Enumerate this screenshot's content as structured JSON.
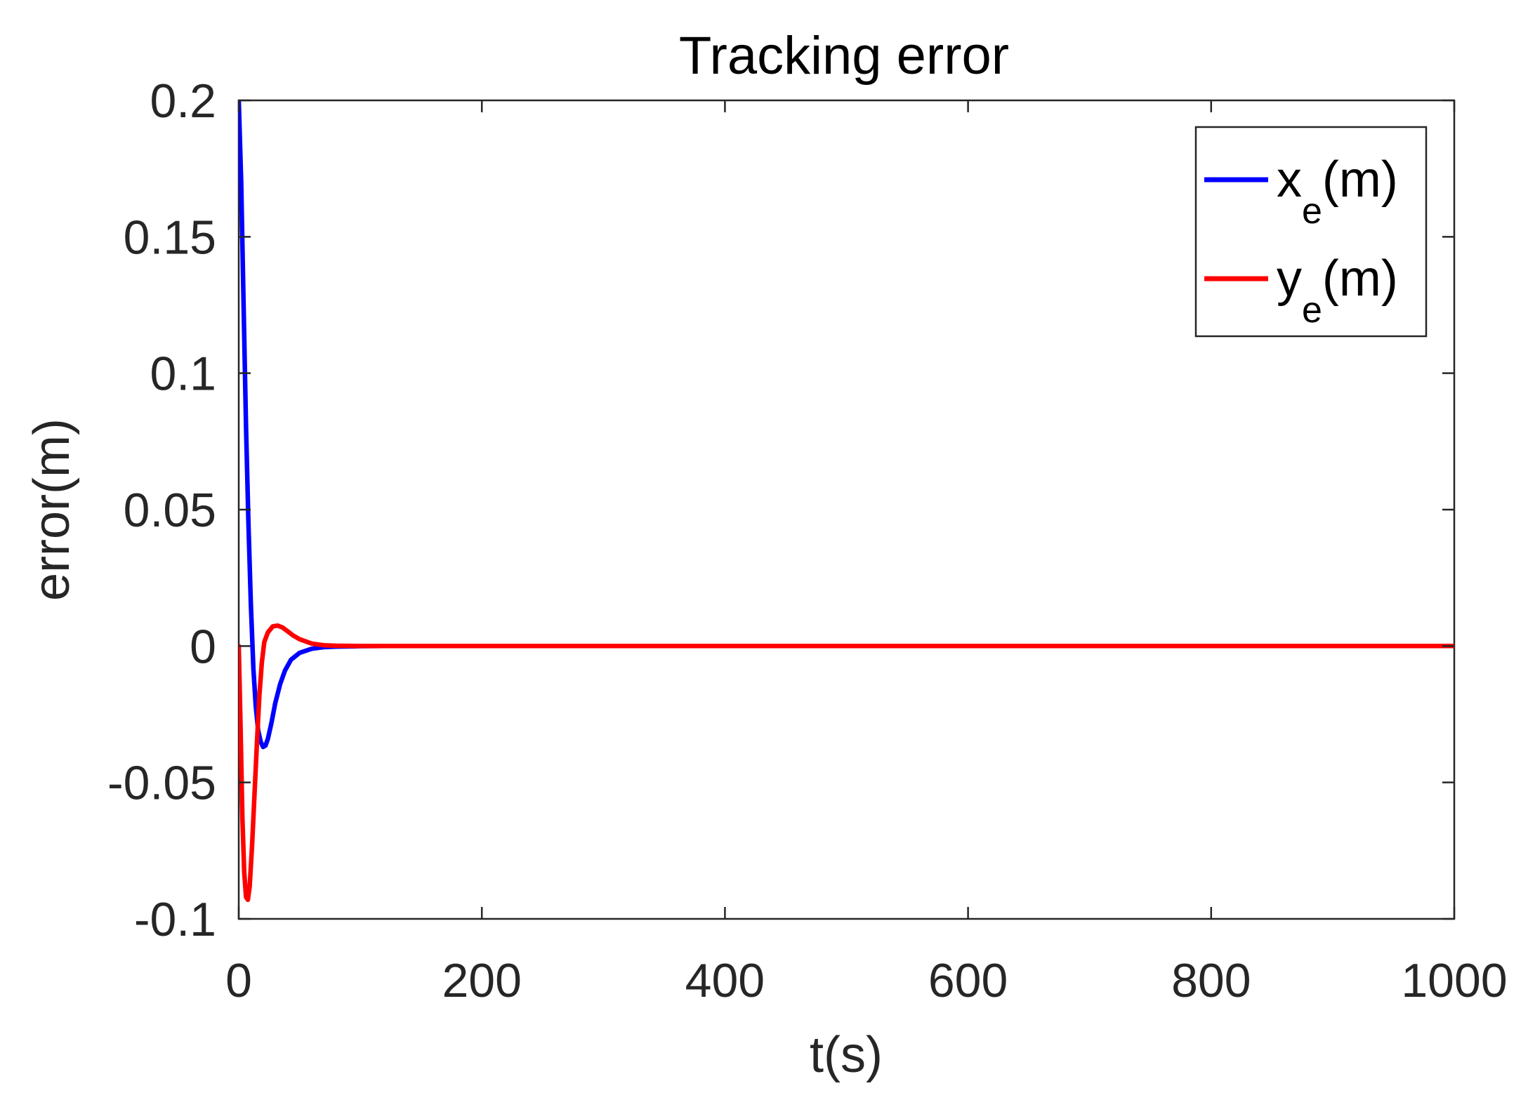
{
  "chart_data": {
    "type": "line",
    "title": "Tracking error",
    "xlabel": "t(s)",
    "ylabel": "error(m)",
    "xlim": [
      0,
      1000
    ],
    "ylim": [
      -0.1,
      0.2
    ],
    "xticks": [
      0,
      200,
      400,
      600,
      800,
      1000
    ],
    "xtick_labels": [
      "0",
      "200",
      "400",
      "600",
      "800",
      "1000"
    ],
    "yticks": [
      -0.1,
      -0.05,
      0,
      0.05,
      0.1,
      0.15,
      0.2
    ],
    "ytick_labels": [
      "-0.1",
      "-0.05",
      "0",
      "0.05",
      "0.1",
      "0.15",
      "0.2"
    ],
    "grid": false,
    "legend_position": "top-right",
    "series": [
      {
        "name": "x_e(m)",
        "legend_main": "x",
        "legend_sub": "e",
        "legend_tail": "(m)",
        "color": "#0000ff",
        "x": [
          0,
          2,
          4,
          6,
          8,
          10,
          12,
          14,
          16,
          18,
          20,
          22,
          24,
          27,
          30,
          34,
          38,
          43,
          50,
          60,
          70,
          80,
          100,
          120,
          1000
        ],
        "y": [
          0.2,
          0.17,
          0.125,
          0.08,
          0.045,
          0.015,
          -0.008,
          -0.022,
          -0.031,
          -0.035,
          -0.037,
          -0.0365,
          -0.034,
          -0.028,
          -0.021,
          -0.014,
          -0.009,
          -0.005,
          -0.0025,
          -0.001,
          -0.0004,
          -0.0002,
          -5e-05,
          0,
          0
        ]
      },
      {
        "name": "y_e(m)",
        "legend_main": "y",
        "legend_sub": "e",
        "legend_tail": "(m)",
        "color": "#ff0000",
        "x": [
          0,
          1.5,
          3,
          4.5,
          6,
          7.5,
          9,
          11,
          13,
          15,
          17,
          19,
          21,
          24,
          28,
          32,
          36,
          40,
          45,
          50,
          60,
          70,
          80,
          100,
          1000
        ],
        "y": [
          0,
          -0.03,
          -0.063,
          -0.083,
          -0.092,
          -0.093,
          -0.088,
          -0.073,
          -0.054,
          -0.035,
          -0.018,
          -0.006,
          0.0015,
          0.005,
          0.0072,
          0.0075,
          0.0068,
          0.0055,
          0.0038,
          0.0025,
          0.0009,
          0.0003,
          0.0001,
          0,
          0
        ]
      }
    ]
  }
}
